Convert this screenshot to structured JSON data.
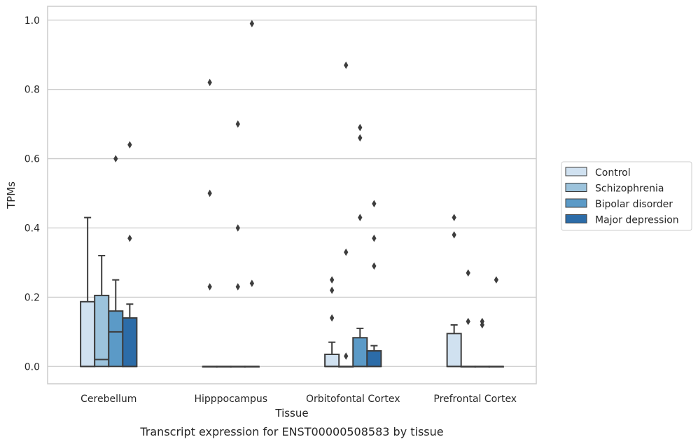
{
  "chart_data": {
    "type": "box",
    "title": "Transcript expression for ENST00000508583 by tissue",
    "xlabel": "Tissue",
    "ylabel": "TPMs",
    "ylim": [
      -0.05,
      1.04
    ],
    "yticks": [
      0.0,
      0.2,
      0.4,
      0.6,
      0.8,
      1.0
    ],
    "ytick_labels": [
      "0.0",
      "0.2",
      "0.4",
      "0.6",
      "0.8",
      "1.0"
    ],
    "grid": "horizontal",
    "legend_position": "right",
    "categories": [
      "Cerebellum",
      "Hipppocampus",
      "Orbitofontal Cortex",
      "Prefrontal Cortex"
    ],
    "series": [
      {
        "name": "Control",
        "color": "#d0e1f0",
        "boxes": [
          {
            "q1": 0.0,
            "median": 0.0,
            "q3": 0.187,
            "whisker_low": 0.0,
            "whisker_high": 0.43,
            "outliers": []
          },
          {
            "q1": 0.0,
            "median": 0.0,
            "q3": 0.0,
            "whisker_low": 0.0,
            "whisker_high": 0.0,
            "outliers": [
              0.82,
              0.5,
              0.23
            ]
          },
          {
            "q1": 0.0,
            "median": 0.0,
            "q3": 0.035,
            "whisker_low": 0.0,
            "whisker_high": 0.07,
            "outliers": [
              0.25,
              0.22,
              0.14
            ]
          },
          {
            "q1": 0.0,
            "median": 0.0,
            "q3": 0.095,
            "whisker_low": 0.0,
            "whisker_high": 0.12,
            "outliers": [
              0.43,
              0.38
            ]
          }
        ]
      },
      {
        "name": "Schizophrenia",
        "color": "#9cc3dc",
        "boxes": [
          {
            "q1": 0.0,
            "median": 0.02,
            "q3": 0.205,
            "whisker_low": 0.0,
            "whisker_high": 0.32,
            "outliers": []
          },
          {
            "q1": 0.0,
            "median": 0.0,
            "q3": 0.0,
            "whisker_low": 0.0,
            "whisker_high": 0.0,
            "outliers": []
          },
          {
            "q1": 0.0,
            "median": 0.0,
            "q3": 0.0,
            "whisker_low": 0.0,
            "whisker_high": 0.0,
            "outliers": [
              0.87,
              0.33,
              0.03
            ]
          },
          {
            "q1": 0.0,
            "median": 0.0,
            "q3": 0.0,
            "whisker_low": 0.0,
            "whisker_high": 0.0,
            "outliers": [
              0.27,
              0.13
            ]
          }
        ]
      },
      {
        "name": "Bipolar disorder",
        "color": "#5b9ac7",
        "boxes": [
          {
            "q1": 0.0,
            "median": 0.1,
            "q3": 0.16,
            "whisker_low": 0.0,
            "whisker_high": 0.25,
            "outliers": [
              0.6
            ]
          },
          {
            "q1": 0.0,
            "median": 0.0,
            "q3": 0.0,
            "whisker_low": 0.0,
            "whisker_high": 0.0,
            "outliers": [
              0.7,
              0.4,
              0.23
            ]
          },
          {
            "q1": 0.0,
            "median": 0.0,
            "q3": 0.083,
            "whisker_low": 0.0,
            "whisker_high": 0.11,
            "outliers": [
              0.69,
              0.66,
              0.43
            ]
          },
          {
            "q1": 0.0,
            "median": 0.0,
            "q3": 0.0,
            "whisker_low": 0.0,
            "whisker_high": 0.0,
            "outliers": [
              0.13,
              0.12
            ]
          }
        ]
      },
      {
        "name": "Major depression",
        "color": "#2c6ca8",
        "boxes": [
          {
            "q1": 0.0,
            "median": 0.0,
            "q3": 0.14,
            "whisker_low": 0.0,
            "whisker_high": 0.18,
            "outliers": [
              0.64,
              0.37
            ]
          },
          {
            "q1": 0.0,
            "median": 0.0,
            "q3": 0.0,
            "whisker_low": 0.0,
            "whisker_high": 0.0,
            "outliers": [
              0.99,
              0.24
            ]
          },
          {
            "q1": 0.0,
            "median": 0.0,
            "q3": 0.045,
            "whisker_low": 0.0,
            "whisker_high": 0.06,
            "outliers": [
              0.47,
              0.37,
              0.29
            ]
          },
          {
            "q1": 0.0,
            "median": 0.0,
            "q3": 0.0,
            "whisker_low": 0.0,
            "whisker_high": 0.0,
            "outliers": [
              0.25
            ]
          }
        ]
      }
    ]
  }
}
